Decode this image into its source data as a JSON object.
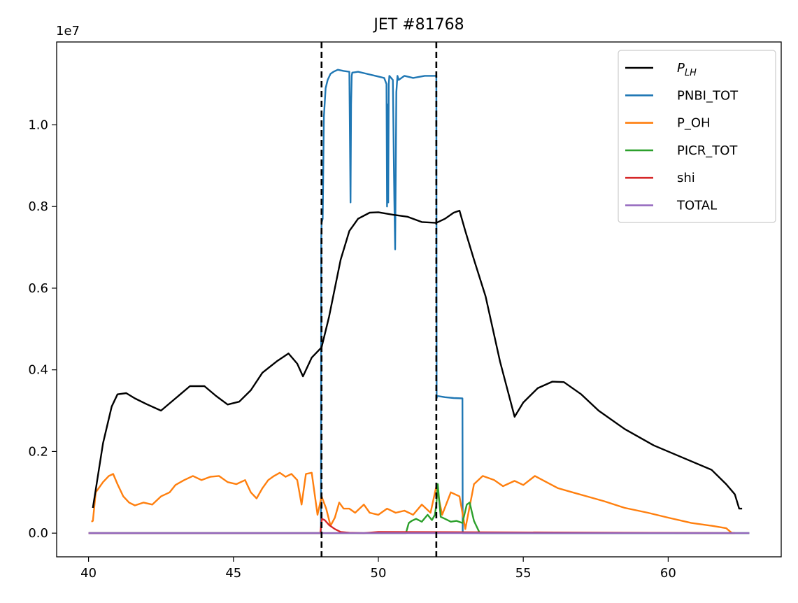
{
  "chart_data": {
    "type": "line",
    "title": "JET #81768",
    "xlabel": "",
    "ylabel": "",
    "y_offset_label": "1e7",
    "xlim": [
      38.9,
      63.9
    ],
    "ylim": [
      -0.058,
      1.203
    ],
    "x_ticks": [
      40,
      45,
      50,
      55,
      60
    ],
    "x_tick_labels": [
      "40",
      "45",
      "50",
      "55",
      "60"
    ],
    "y_ticks": [
      0.0,
      0.2,
      0.4,
      0.6,
      0.8,
      1.0
    ],
    "y_tick_labels": [
      "0.0",
      "0.2",
      "0.4",
      "0.6",
      "0.8",
      "1.0"
    ],
    "grid": false,
    "legend_position": "top-right",
    "vlines": [
      {
        "x": 48.04,
        "color": "#000000",
        "style": "dashed"
      },
      {
        "x": 52.0,
        "color": "#000000",
        "style": "dashed"
      }
    ],
    "series": [
      {
        "name": "P_LH",
        "legend_label": "P_LH",
        "color": "#000000",
        "x": [
          40.15,
          40.5,
          40.8,
          41.0,
          41.3,
          41.6,
          42.0,
          42.5,
          43.0,
          43.5,
          44.0,
          44.4,
          44.8,
          45.2,
          45.6,
          46.0,
          46.5,
          46.9,
          47.2,
          47.4,
          47.7,
          48.04,
          48.3,
          48.5,
          48.7,
          49.0,
          49.3,
          49.7,
          50.0,
          50.5,
          51.0,
          51.5,
          52.0,
          52.3,
          52.6,
          52.8,
          53.0,
          53.3,
          53.7,
          54.2,
          54.7,
          55.0,
          55.5,
          56.0,
          56.4,
          57.0,
          57.6,
          58.5,
          59.5,
          60.5,
          61.5,
          62.0,
          62.3,
          62.45,
          62.55
        ],
        "y": [
          0.062,
          0.22,
          0.31,
          0.34,
          0.343,
          0.33,
          0.316,
          0.3,
          0.33,
          0.36,
          0.36,
          0.336,
          0.315,
          0.322,
          0.35,
          0.393,
          0.421,
          0.44,
          0.415,
          0.384,
          0.43,
          0.455,
          0.53,
          0.6,
          0.67,
          0.74,
          0.77,
          0.785,
          0.786,
          0.78,
          0.775,
          0.762,
          0.76,
          0.77,
          0.785,
          0.79,
          0.74,
          0.67,
          0.58,
          0.42,
          0.285,
          0.32,
          0.355,
          0.371,
          0.37,
          0.34,
          0.3,
          0.255,
          0.215,
          0.185,
          0.155,
          0.12,
          0.095,
          0.06,
          0.06
        ]
      },
      {
        "name": "PNBI_TOT",
        "legend_label": "PNBI_TOT",
        "color": "#1f77b4",
        "x": [
          40.0,
          48.02,
          48.03,
          48.04,
          48.08,
          48.12,
          48.18,
          48.25,
          48.35,
          48.45,
          48.6,
          48.8,
          49.0,
          49.04,
          49.06,
          49.08,
          49.1,
          49.3,
          49.6,
          49.9,
          50.2,
          50.28,
          50.3,
          50.32,
          50.34,
          50.36,
          50.38,
          50.5,
          50.55,
          50.58,
          50.62,
          50.66,
          50.7,
          50.9,
          51.2,
          51.6,
          52.0,
          52.01,
          52.03,
          52.3,
          52.6,
          52.9,
          52.91,
          52.92,
          54.0,
          62.8
        ],
        "y": [
          0.0,
          0.0,
          0.72,
          0.76,
          0.77,
          1.02,
          1.09,
          1.11,
          1.125,
          1.13,
          1.135,
          1.132,
          1.13,
          0.81,
          1.05,
          1.12,
          1.128,
          1.13,
          1.125,
          1.12,
          1.115,
          1.1,
          0.8,
          1.05,
          0.81,
          1.1,
          1.12,
          1.11,
          0.82,
          0.695,
          1.08,
          1.12,
          1.11,
          1.12,
          1.115,
          1.12,
          1.12,
          0.33,
          0.336,
          0.333,
          0.331,
          0.33,
          0.0,
          0.0,
          0.0,
          0.0
        ]
      },
      {
        "name": "P_OH",
        "legend_label": "P_OH",
        "color": "#ff7f0e",
        "x": [
          40.1,
          40.15,
          40.25,
          40.35,
          40.5,
          40.7,
          40.85,
          41.0,
          41.2,
          41.4,
          41.6,
          41.9,
          42.2,
          42.5,
          42.8,
          43.0,
          43.3,
          43.6,
          43.9,
          44.2,
          44.5,
          44.8,
          45.1,
          45.4,
          45.6,
          45.8,
          46.0,
          46.2,
          46.4,
          46.6,
          46.8,
          47.0,
          47.2,
          47.35,
          47.5,
          47.7,
          47.9,
          48.04,
          48.2,
          48.35,
          48.5,
          48.65,
          48.8,
          49.0,
          49.2,
          49.5,
          49.7,
          50.0,
          50.3,
          50.6,
          50.9,
          51.2,
          51.5,
          51.8,
          52.0,
          52.2,
          52.5,
          52.8,
          53.0,
          53.3,
          53.6,
          54.0,
          54.3,
          54.7,
          55.0,
          55.4,
          55.8,
          56.2,
          56.7,
          57.2,
          57.8,
          58.5,
          59.3,
          60.0,
          60.8,
          61.5,
          62.0,
          62.2,
          62.3
        ],
        "y": [
          0.028,
          0.03,
          0.1,
          0.11,
          0.125,
          0.14,
          0.145,
          0.12,
          0.09,
          0.075,
          0.068,
          0.075,
          0.07,
          0.09,
          0.1,
          0.118,
          0.13,
          0.14,
          0.13,
          0.138,
          0.14,
          0.125,
          0.12,
          0.13,
          0.1,
          0.085,
          0.11,
          0.13,
          0.14,
          0.148,
          0.138,
          0.145,
          0.13,
          0.07,
          0.145,
          0.148,
          0.045,
          0.09,
          0.06,
          0.018,
          0.038,
          0.075,
          0.06,
          0.06,
          0.05,
          0.07,
          0.05,
          0.045,
          0.06,
          0.05,
          0.055,
          0.045,
          0.07,
          0.05,
          0.115,
          0.045,
          0.1,
          0.09,
          0.01,
          0.12,
          0.14,
          0.13,
          0.115,
          0.128,
          0.118,
          0.14,
          0.125,
          0.11,
          0.1,
          0.09,
          0.078,
          0.062,
          0.05,
          0.038,
          0.025,
          0.018,
          0.012,
          0.0,
          0.0
        ]
      },
      {
        "name": "PICR_TOT",
        "legend_label": "PICR_TOT",
        "color": "#2ca02c",
        "x": [
          40.0,
          50.95,
          51.05,
          51.15,
          51.3,
          51.5,
          51.7,
          51.85,
          51.95,
          52.0,
          52.05,
          52.15,
          52.3,
          52.5,
          52.7,
          52.9,
          53.05,
          53.15,
          53.3,
          53.5,
          53.6,
          62.8
        ],
        "y": [
          0.0,
          0.0,
          0.025,
          0.03,
          0.035,
          0.028,
          0.045,
          0.032,
          0.045,
          0.07,
          0.12,
          0.04,
          0.035,
          0.028,
          0.03,
          0.025,
          0.07,
          0.075,
          0.03,
          0.0,
          0.0,
          0.0
        ]
      },
      {
        "name": "shi",
        "legend_label": "shi",
        "color": "#d62728",
        "x": [
          40.0,
          48.0,
          48.05,
          48.15,
          48.3,
          48.5,
          48.7,
          49.0,
          49.5,
          50.0,
          62.3
        ],
        "y": [
          0.0,
          0.0,
          0.035,
          0.032,
          0.02,
          0.01,
          0.003,
          0.001,
          0.0,
          0.003,
          0.0
        ]
      },
      {
        "name": "TOTAL",
        "legend_label": "TOTAL",
        "color": "#9467bd",
        "x": [
          40.0,
          62.8
        ],
        "y": [
          0.0,
          0.0
        ]
      }
    ]
  }
}
